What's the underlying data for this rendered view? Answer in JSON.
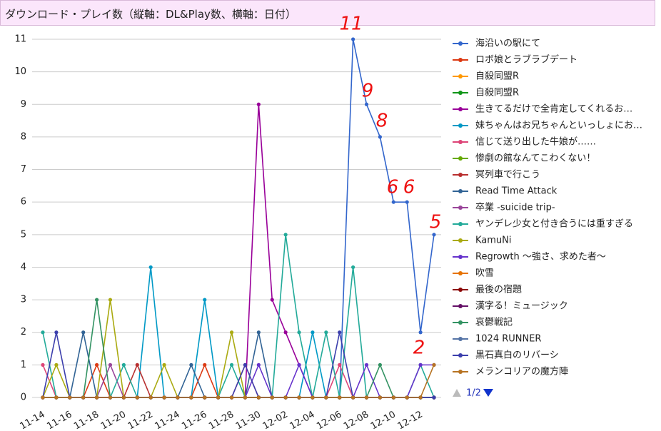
{
  "chart_data": {
    "type": "line",
    "title": "ダウンロード・プレイ数（縦軸：DL&Play数、横軸：日付）",
    "categories": [
      "11-14",
      null,
      "11-16",
      null,
      "11-18",
      null,
      "11-20",
      null,
      "11-22",
      null,
      "11-24",
      null,
      "11-26",
      null,
      "11-28",
      null,
      "11-30",
      null,
      "12-02",
      null,
      "12-04",
      null,
      "12-06",
      null,
      "12-08",
      null,
      "12-10",
      null,
      "12-12",
      null
    ],
    "ylim": [
      0,
      11
    ],
    "yticks": [
      0,
      1,
      2,
      3,
      4,
      5,
      6,
      7,
      8,
      9,
      10,
      11
    ],
    "grid": true,
    "legend_page": "1/2",
    "annotations": [
      "11",
      "9",
      "8",
      "6",
      "6",
      "5",
      "2"
    ],
    "series": [
      {
        "name": "海沿いの駅にて",
        "color": "#3366cc",
        "values": [
          0,
          0,
          0,
          0,
          0,
          0,
          0,
          0,
          0,
          0,
          0,
          0,
          0,
          0,
          0,
          0,
          0,
          0,
          0,
          0,
          0,
          0,
          0,
          11,
          9,
          8,
          6,
          6,
          2,
          5
        ]
      },
      {
        "name": "ロボ娘とラブラブデート",
        "color": "#dc3912",
        "values": [
          0,
          0,
          0,
          0,
          1,
          0,
          0,
          0,
          0,
          0,
          0,
          0,
          1,
          0,
          0,
          0,
          0,
          0,
          0,
          0,
          0,
          0,
          0,
          0,
          0,
          0,
          0,
          0,
          0,
          0
        ]
      },
      {
        "name": "自殺同盟R",
        "color": "#ff9900",
        "values": [
          0,
          0,
          0,
          0,
          0,
          0,
          0,
          0,
          0,
          0,
          0,
          0,
          0,
          0,
          0,
          0,
          0,
          0,
          0,
          0,
          0,
          0,
          0,
          0,
          0,
          0,
          0,
          0,
          0,
          0
        ]
      },
      {
        "name": "自殺同盟R",
        "color": "#109618",
        "values": [
          0,
          0,
          0,
          0,
          0,
          0,
          0,
          0,
          0,
          0,
          0,
          0,
          0,
          0,
          0,
          0,
          0,
          0,
          0,
          0,
          0,
          0,
          0,
          0,
          0,
          0,
          0,
          0,
          0,
          0
        ]
      },
      {
        "name": "生きてるだけで全肯定してくれるお…",
        "color": "#990099",
        "values": [
          0,
          0,
          0,
          0,
          0,
          0,
          0,
          0,
          0,
          0,
          0,
          0,
          0,
          0,
          0,
          0,
          9,
          3,
          2,
          1,
          0,
          0,
          0,
          0,
          0,
          0,
          0,
          0,
          0,
          0
        ]
      },
      {
        "name": "妹ちゃんはお兄ちゃんといっしょにお…",
        "color": "#0099c6",
        "values": [
          0,
          0,
          0,
          0,
          0,
          0,
          0,
          0,
          4,
          0,
          0,
          0,
          3,
          0,
          0,
          0,
          0,
          0,
          0,
          0,
          2,
          0,
          0,
          0,
          0,
          0,
          0,
          0,
          0,
          0
        ]
      },
      {
        "name": "信じて送り出した牛娘が……",
        "color": "#dd4477",
        "values": [
          1,
          0,
          0,
          0,
          0,
          0,
          0,
          0,
          0,
          0,
          0,
          0,
          0,
          0,
          0,
          1,
          0,
          0,
          0,
          0,
          0,
          0,
          1,
          0,
          0,
          0,
          0,
          0,
          0,
          0
        ]
      },
      {
        "name": "惨劇の館なんてこわくない！",
        "color": "#66aa00",
        "values": [
          0,
          0,
          0,
          0,
          0,
          0,
          0,
          0,
          0,
          0,
          0,
          0,
          0,
          0,
          0,
          0,
          0,
          0,
          0,
          0,
          0,
          0,
          0,
          0,
          0,
          0,
          0,
          0,
          0,
          0
        ]
      },
      {
        "name": "冥列車で行こう",
        "color": "#b82e2e",
        "values": [
          0,
          0,
          0,
          0,
          0,
          0,
          0,
          1,
          0,
          0,
          0,
          0,
          0,
          0,
          0,
          0,
          0,
          0,
          0,
          0,
          0,
          0,
          0,
          0,
          0,
          0,
          0,
          0,
          0,
          0
        ]
      },
      {
        "name": "Read Time Attack",
        "color": "#316395",
        "values": [
          0,
          0,
          0,
          2,
          0,
          0,
          0,
          0,
          0,
          0,
          0,
          1,
          0,
          0,
          0,
          0,
          2,
          0,
          0,
          0,
          0,
          0,
          0,
          0,
          0,
          0,
          0,
          0,
          0,
          0
        ]
      },
      {
        "name": "卒業 -suicide trip-",
        "color": "#994499",
        "values": [
          0,
          0,
          0,
          0,
          0,
          1,
          0,
          0,
          0,
          0,
          0,
          0,
          0,
          0,
          0,
          0,
          0,
          0,
          0,
          0,
          0,
          0,
          0,
          0,
          0,
          0,
          0,
          0,
          0,
          0
        ]
      },
      {
        "name": "ヤンデレ少女と付き合うには重すぎる",
        "color": "#22aa99",
        "values": [
          2,
          0,
          0,
          0,
          0,
          0,
          1,
          0,
          0,
          0,
          0,
          0,
          0,
          0,
          1,
          0,
          0,
          0,
          5,
          2,
          0,
          2,
          0,
          4,
          0,
          0,
          0,
          0,
          1,
          0
        ]
      },
      {
        "name": "KamuNi",
        "color": "#aaaa11",
        "values": [
          0,
          1,
          0,
          0,
          0,
          3,
          0,
          0,
          0,
          1,
          0,
          0,
          0,
          0,
          2,
          0,
          0,
          0,
          0,
          0,
          0,
          0,
          0,
          0,
          0,
          0,
          0,
          0,
          0,
          0
        ]
      },
      {
        "name": "Regrowth ～強さ、求めた者～",
        "color": "#6633cc",
        "values": [
          0,
          0,
          0,
          0,
          0,
          0,
          0,
          0,
          0,
          0,
          0,
          0,
          0,
          0,
          0,
          0,
          1,
          0,
          0,
          1,
          0,
          0,
          0,
          0,
          1,
          0,
          0,
          0,
          1,
          1
        ]
      },
      {
        "name": "吹雪",
        "color": "#e67300",
        "values": [
          0,
          0,
          0,
          0,
          0,
          0,
          0,
          0,
          0,
          0,
          0,
          0,
          0,
          0,
          0,
          0,
          0,
          0,
          0,
          0,
          0,
          0,
          0,
          0,
          0,
          0,
          0,
          0,
          0,
          0
        ]
      },
      {
        "name": "最後の宿題",
        "color": "#8b0707",
        "values": [
          0,
          0,
          0,
          0,
          0,
          0,
          0,
          0,
          0,
          0,
          0,
          0,
          0,
          0,
          0,
          0,
          0,
          0,
          0,
          0,
          0,
          0,
          0,
          0,
          0,
          0,
          0,
          0,
          0,
          0
        ]
      },
      {
        "name": "漢字る！ミュージック",
        "color": "#651067",
        "values": [
          0,
          0,
          0,
          0,
          0,
          0,
          0,
          0,
          0,
          0,
          0,
          0,
          0,
          0,
          0,
          0,
          0,
          0,
          0,
          0,
          0,
          0,
          0,
          0,
          0,
          0,
          0,
          0,
          0,
          0
        ]
      },
      {
        "name": "哀鬱戦記",
        "color": "#329262",
        "values": [
          0,
          0,
          0,
          0,
          3,
          0,
          0,
          0,
          0,
          0,
          0,
          0,
          0,
          0,
          0,
          0,
          0,
          0,
          0,
          0,
          0,
          0,
          0,
          0,
          0,
          1,
          0,
          0,
          0,
          0
        ]
      },
      {
        "name": "1024 RUNNER",
        "color": "#5574a6",
        "values": [
          0,
          0,
          0,
          0,
          0,
          0,
          0,
          0,
          0,
          0,
          0,
          0,
          0,
          0,
          0,
          0,
          0,
          0,
          0,
          0,
          0,
          0,
          0,
          0,
          0,
          0,
          0,
          0,
          0,
          0
        ]
      },
      {
        "name": "黒石真白のリバーシ",
        "color": "#3b3eac",
        "values": [
          0,
          2,
          0,
          0,
          0,
          0,
          0,
          0,
          0,
          0,
          0,
          0,
          0,
          0,
          0,
          1,
          0,
          0,
          0,
          0,
          0,
          0,
          2,
          0,
          0,
          0,
          0,
          0,
          0,
          0
        ]
      },
      {
        "name": "メランコリアの魔方陣",
        "color": "#b77322",
        "values": [
          0,
          0,
          0,
          0,
          0,
          0,
          0,
          0,
          0,
          0,
          0,
          0,
          0,
          0,
          0,
          0,
          0,
          0,
          0,
          0,
          0,
          0,
          0,
          0,
          0,
          0,
          0,
          0,
          0,
          1
        ]
      }
    ]
  }
}
